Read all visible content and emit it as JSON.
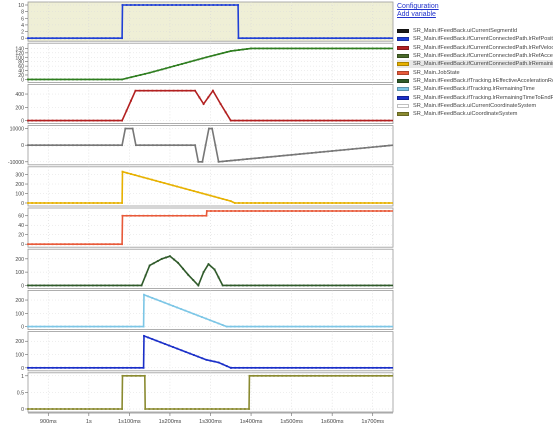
{
  "legend": {
    "configuration_link": "Configuration",
    "add_variable_link": "Add variable",
    "items": [
      {
        "label": "SR_Main.ifFeedBack.uiCurrentSegmentId",
        "color": "#1a1a1a"
      },
      {
        "label": "SR_Main.ifFeedBack.ifCurrentConnectedPath.lrRefPosition",
        "color": "#1f3fd6"
      },
      {
        "label": "SR_Main.ifFeedBack.ifCurrentConnectedPath.lrRefVelocity",
        "color": "#b22020"
      },
      {
        "label": "SR_Main.ifFeedBack.ifCurrentConnectedPath.lrRefAcceleration",
        "color": "#4a6a2a"
      },
      {
        "label": "SR_Main.ifFeedBack.ifCurrentConnectedPath.lrRemainingTime",
        "color": "#e7b100"
      },
      {
        "label": "SR_Main.JobState",
        "color": "#e85a3a"
      },
      {
        "label": "SR_Main.ifFeedBack.ifTracking.lrEffectiveAccelerationRoadMax",
        "color": "#2f5a2a"
      },
      {
        "label": "SR_Main.ifFeedBack.ifTracking.lrRemainingTime",
        "color": "#7cc6e6"
      },
      {
        "label": "SR_Main.ifFeedBack.ifTracking.lrRemainingTimeToEndPositionDist",
        "color": "#1a2fc8"
      },
      {
        "label": "SR_Main.ifFeedBack.uiCurrentCoordinateSystem",
        "color": "#ffffff"
      },
      {
        "label": "SR_Main.ifFeedBack.uiCoordinateSystem",
        "color": "#8a8a30"
      }
    ],
    "selected_index": 4
  },
  "x_axis": {
    "ticks": [
      "900ms",
      "1s",
      "1s100ms",
      "1s200ms",
      "1s300ms",
      "1s400ms",
      "1s500ms",
      "1s600ms",
      "1s700ms"
    ]
  },
  "chart_data": {
    "type": "line",
    "x_unit": "ms",
    "xlim": [
      850,
      1750
    ],
    "x_ticks": [
      900,
      1000,
      1100,
      1200,
      1300,
      1400,
      1500,
      1600,
      1700
    ],
    "panels": [
      {
        "name": "uiCurrentSegmentId",
        "color": "#1f3fd6",
        "ylim": [
          0,
          10
        ],
        "y_ticks": [
          0,
          2,
          4,
          6,
          8,
          10
        ],
        "background": "#efefd6",
        "x": [
          850,
          1082,
          1083,
          1368,
          1369,
          1750
        ],
        "y": [
          0,
          0,
          10,
          10,
          0,
          0
        ]
      },
      {
        "name": "lrRefPosition",
        "color": "#2e7d1f",
        "ylim": [
          0,
          150
        ],
        "y_ticks": [
          0,
          20,
          40,
          60,
          80,
          100,
          120,
          140
        ],
        "x": [
          850,
          1082,
          1150,
          1220,
          1290,
          1350,
          1400,
          1750
        ],
        "y": [
          0,
          0,
          30,
          65,
          100,
          128,
          140,
          140
        ]
      },
      {
        "name": "lrRefVelocity",
        "color": "#b22020",
        "ylim": [
          0,
          500
        ],
        "y_ticks": [
          0,
          200,
          400
        ],
        "x": [
          850,
          1082,
          1115,
          1230,
          1262,
          1283,
          1306,
          1325,
          1350,
          1750
        ],
        "y": [
          0,
          0,
          450,
          450,
          450,
          250,
          450,
          250,
          0,
          0
        ]
      },
      {
        "name": "lrRefAcceleration",
        "color": "#777777",
        "ylim": [
          -10000,
          10000
        ],
        "y_ticks": [
          -10000,
          0,
          10000
        ],
        "x": [
          850,
          1082,
          1090,
          1108,
          1116,
          1262,
          1270,
          1280,
          1288,
          1296,
          1304,
          1312,
          1320,
          1750
        ],
        "y": [
          0,
          0,
          10000,
          10000,
          0,
          0,
          -10000,
          -10000,
          0,
          10000,
          10000,
          0,
          -10000,
          0
        ]
      },
      {
        "name": "lrRemainingTime",
        "color": "#e7b100",
        "ylim": [
          0,
          350
        ],
        "y_ticks": [
          0,
          100,
          200,
          300
        ],
        "x": [
          850,
          1082,
          1083,
          1290,
          1350,
          1360,
          1750
        ],
        "y": [
          0,
          0,
          330,
          90,
          20,
          0,
          0
        ]
      },
      {
        "name": "JobState",
        "color": "#e85a3a",
        "ylim": [
          0,
          70
        ],
        "y_ticks": [
          0,
          20,
          40,
          60
        ],
        "x": [
          850,
          1082,
          1083,
          1290,
          1291,
          1750
        ],
        "y": [
          0,
          0,
          60,
          60,
          70,
          70
        ]
      },
      {
        "name": "lrEffectiveAccelerationRoadMax",
        "color": "#2f5a2a",
        "ylim": [
          0,
          250
        ],
        "y_ticks": [
          0,
          100,
          200
        ],
        "x": [
          850,
          1130,
          1150,
          1180,
          1200,
          1220,
          1245,
          1270,
          1283,
          1295,
          1310,
          1330,
          1750
        ],
        "y": [
          0,
          0,
          150,
          200,
          220,
          170,
          80,
          0,
          100,
          160,
          120,
          0,
          0
        ]
      },
      {
        "name": "lrRemainingTime (tracking)",
        "color": "#7cc6e6",
        "ylim": [
          0,
          250
        ],
        "y_ticks": [
          0,
          100,
          200
        ],
        "x": [
          850,
          1135,
          1136,
          1340,
          1750
        ],
        "y": [
          0,
          0,
          240,
          0,
          0
        ]
      },
      {
        "name": "lrRemainingTimeToEndPositionDist",
        "color": "#1a2fc8",
        "ylim": [
          0,
          250
        ],
        "y_ticks": [
          0,
          100,
          200
        ],
        "x": [
          850,
          1135,
          1136,
          1290,
          1320,
          1350,
          1351,
          1750
        ],
        "y": [
          0,
          0,
          240,
          60,
          40,
          0,
          0,
          0
        ]
      },
      {
        "name": "uiCoordinateSystem",
        "color": "#8a8a30",
        "ylim": [
          0,
          1
        ],
        "y_ticks": [
          0,
          0.5,
          1
        ],
        "x": [
          850,
          1082,
          1083,
          1138,
          1139,
          1395,
          1396,
          1750
        ],
        "y": [
          0,
          0,
          1,
          1,
          0,
          0,
          1,
          1
        ]
      }
    ]
  }
}
